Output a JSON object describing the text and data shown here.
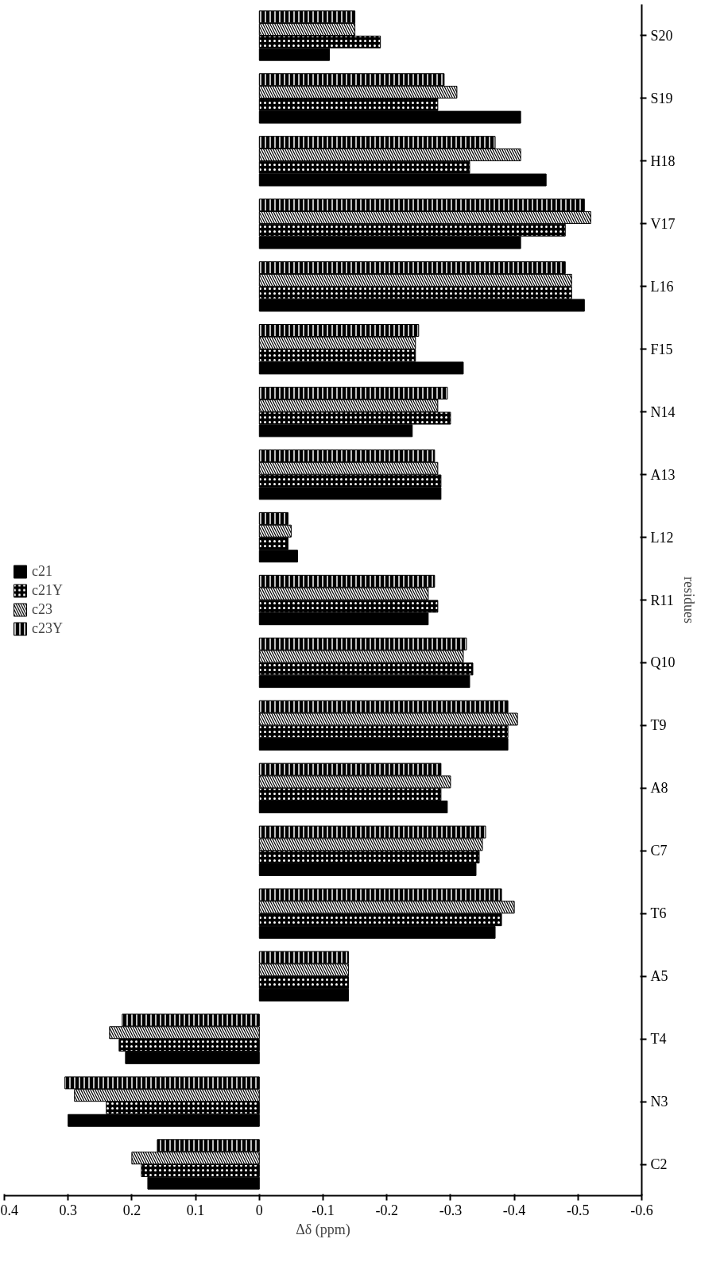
{
  "chart_data": {
    "type": "bar",
    "orientation": "horizontal",
    "xlabel": "Δδ (ppm)",
    "ylabel": "residues",
    "categories": [
      "S20",
      "S19",
      "H18",
      "V17",
      "L16",
      "F15",
      "N14",
      "A13",
      "L12",
      "R11",
      "Q10",
      "T9",
      "A8",
      "C7",
      "T6",
      "A5",
      "T4",
      "N3",
      "C2"
    ],
    "series": [
      {
        "name": "c23Y",
        "color": "#000000",
        "values": [
          -0.15,
          -0.29,
          -0.37,
          -0.51,
          -0.48,
          -0.25,
          -0.295,
          -0.275,
          -0.045,
          -0.275,
          -0.325,
          -0.39,
          -0.285,
          -0.355,
          -0.38,
          -0.14,
          0.215,
          0.305,
          0.16
        ]
      },
      {
        "name": "c23",
        "color": "#000000",
        "values": [
          -0.15,
          -0.31,
          -0.41,
          -0.52,
          -0.49,
          -0.245,
          -0.28,
          -0.28,
          -0.05,
          -0.265,
          -0.32,
          -0.405,
          -0.3,
          -0.35,
          -0.4,
          -0.14,
          0.235,
          0.29,
          0.2
        ]
      },
      {
        "name": "c21Y",
        "color": "#000000",
        "values": [
          -0.19,
          -0.28,
          -0.33,
          -0.48,
          -0.49,
          -0.245,
          -0.3,
          -0.285,
          -0.045,
          -0.28,
          -0.335,
          -0.39,
          -0.285,
          -0.345,
          -0.38,
          -0.14,
          0.22,
          0.24,
          0.185
        ]
      },
      {
        "name": "c21",
        "color": "#000000",
        "values": [
          -0.11,
          -0.41,
          -0.45,
          -0.41,
          -0.51,
          -0.32,
          -0.24,
          -0.285,
          -0.06,
          -0.265,
          -0.33,
          -0.39,
          -0.295,
          -0.34,
          -0.37,
          -0.14,
          0.21,
          0.3,
          0.175
        ]
      }
    ],
    "xlim": [
      0.4,
      -0.6
    ],
    "xticks": [
      0.4,
      0.3,
      0.2,
      0.1,
      0,
      -0.1,
      -0.2,
      -0.3,
      -0.4,
      -0.5,
      -0.6
    ],
    "grid": false,
    "legend": "left"
  }
}
